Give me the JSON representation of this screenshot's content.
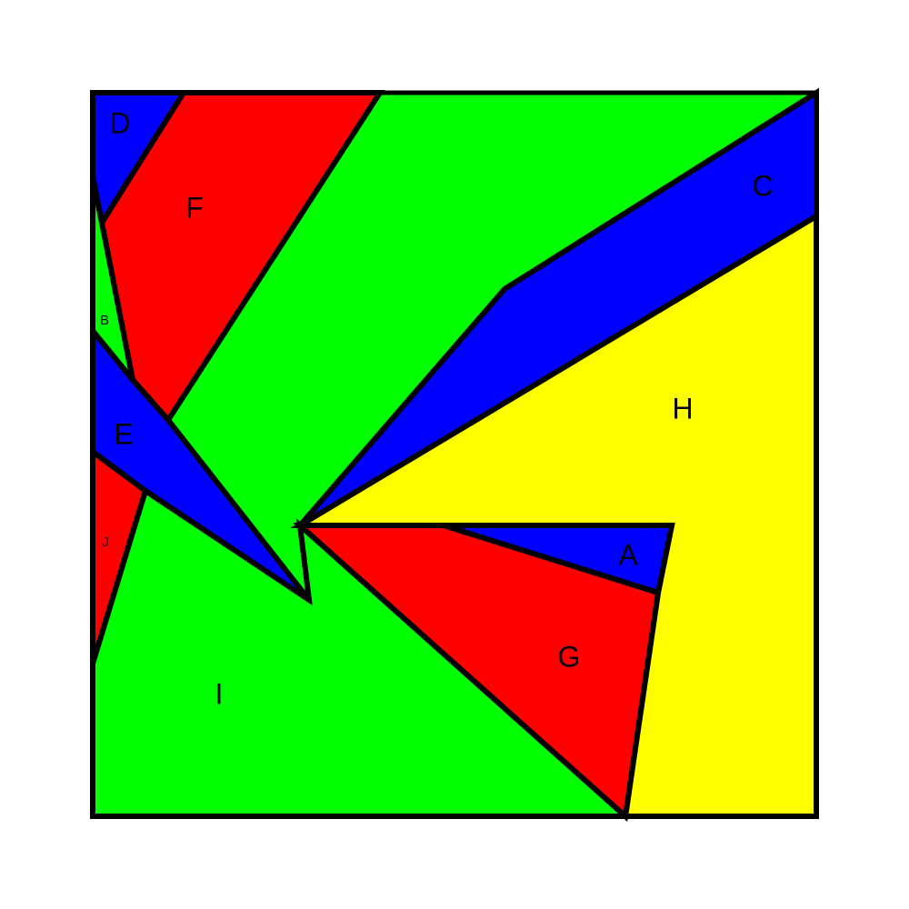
{
  "colors": {
    "red": "#ff0000",
    "green": "#00ff00",
    "blue": "#0000ff",
    "yellow": "#ffff00",
    "outline": "#000000"
  },
  "regions": [
    {
      "label": "A",
      "color": "blue"
    },
    {
      "label": "B",
      "color": "green"
    },
    {
      "label": "C",
      "color": "blue"
    },
    {
      "label": "D",
      "color": "blue"
    },
    {
      "label": "E",
      "color": "blue"
    },
    {
      "label": "F",
      "color": "red"
    },
    {
      "label": "G",
      "color": "red"
    },
    {
      "label": "H",
      "color": "yellow"
    },
    {
      "label": "I",
      "color": "green"
    },
    {
      "label": "J",
      "color": "red"
    }
  ]
}
